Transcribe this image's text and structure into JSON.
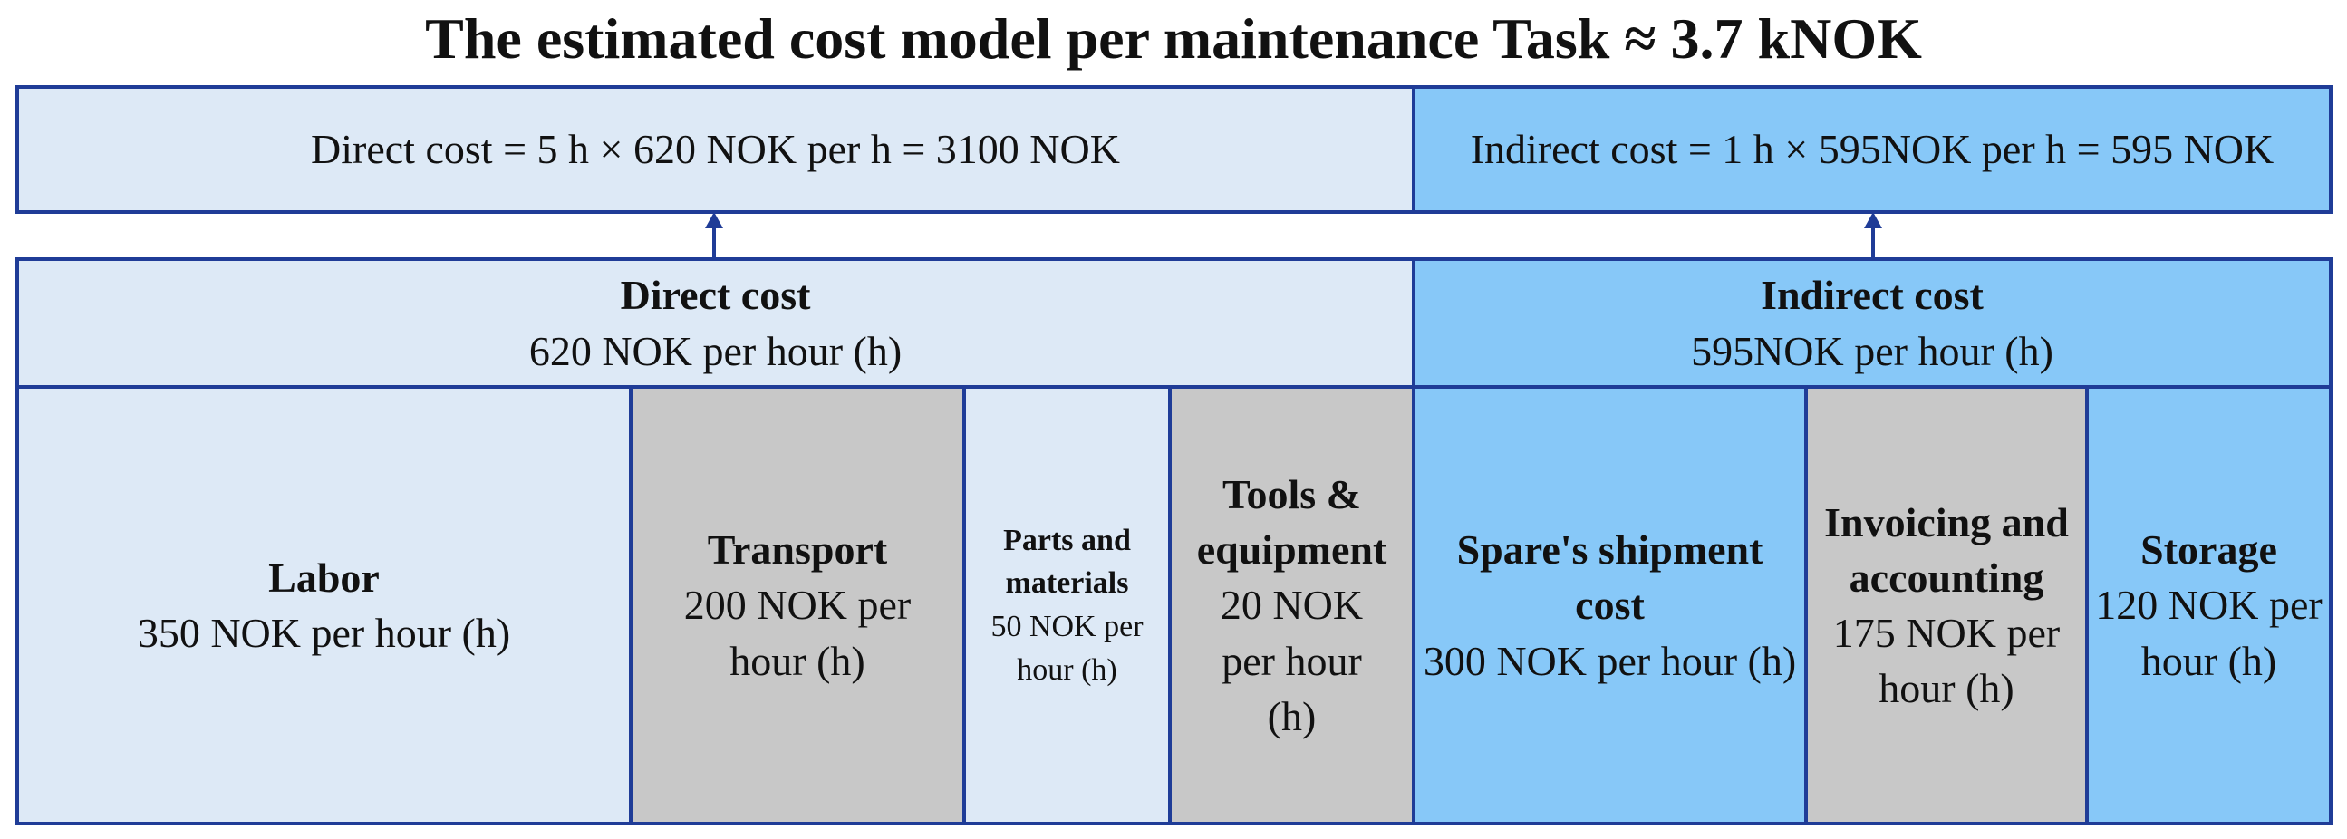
{
  "title": "The estimated cost model per maintenance Task ≈ 3.7 kNOK",
  "summary": {
    "direct": "Direct cost = 5 h × 620 NOK per h = 3100 NOK",
    "indirect": "Indirect cost = 1 h × 595NOK per h = 595 NOK"
  },
  "groups": [
    {
      "name": "Direct cost",
      "rate": "620 NOK per hour (h)",
      "items": [
        {
          "name": "Labor",
          "rate": "350 NOK per hour (h)"
        },
        {
          "name": "Transport",
          "rate": "200 NOK per hour (h)"
        },
        {
          "name": "Parts and materials",
          "rate": "50 NOK per hour (h)"
        },
        {
          "name": "Tools & equipment",
          "rate": "20 NOK per hour (h)"
        }
      ]
    },
    {
      "name": "Indirect cost",
      "rate": "595NOK per hour (h)",
      "items": [
        {
          "name": "Spare's shipment cost",
          "rate": "300 NOK per hour (h)"
        },
        {
          "name": "Invoicing and accounting",
          "rate": "175 NOK per hour (h)"
        },
        {
          "name": "Storage",
          "rate": "120 NOK per hour (h)"
        }
      ]
    }
  ]
}
